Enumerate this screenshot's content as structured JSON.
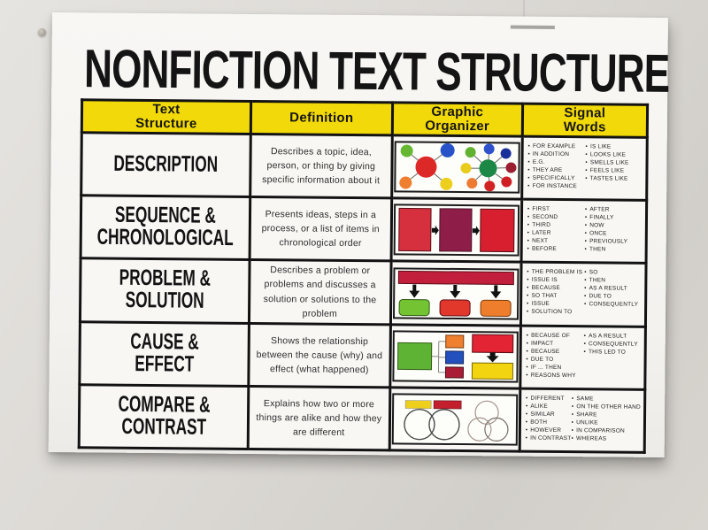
{
  "poster": {
    "title": "NONFICTION TEXT STRUCTURE"
  },
  "colors": {
    "header_yellow": "#f2d90a",
    "poster_white": "#f6f5f2",
    "wall_gray": "#dbd8d4",
    "border_black": "#121212",
    "red": "#d62f3e",
    "maroon": "#8e1e47",
    "crimson": "#c21f3d",
    "green": "#5eb335",
    "orange": "#ee8030",
    "blue": "#2450be",
    "yellow": "#f2d411"
  },
  "table": {
    "headers": [
      "Text\nStructure",
      "Definition",
      "Graphic\nOrganizer",
      "Signal\nWords"
    ],
    "rows": [
      {
        "structure": "DESCRIPTION",
        "definition": "Describes a topic, idea, person, or thing by giving specific information about it",
        "organizer": "two bubble webs",
        "signal_words_col1": [
          "FOR EXAMPLE",
          "IN ADDITION",
          "E.G.",
          "THEY ARE",
          "SPECIFICALLY",
          "FOR INSTANCE"
        ],
        "signal_words_col2": [
          "IS LIKE",
          "LOOKS LIKE",
          "SMELLS LIKE",
          "FEELS LIKE",
          "TASTES LIKE"
        ]
      },
      {
        "structure": "SEQUENCE &\nCHRONOLOGICAL",
        "definition": "Presents ideas, steps in a process, or a list of items in chronological order",
        "organizer": "three boxes with arrows flow",
        "signal_words_col1": [
          "FIRST",
          "SECOND",
          "THIRD",
          "LATER",
          "NEXT",
          "BEFORE"
        ],
        "signal_words_col2": [
          "AFTER",
          "FINALLY",
          "NOW",
          "ONCE",
          "PREVIOUSLY",
          "THEN"
        ]
      },
      {
        "structure": "PROBLEM &\nSOLUTION",
        "definition": "Describes a problem or problems and discusses a solution or solutions to the problem",
        "organizer": "problem bar with arrows down to three solution boxes",
        "signal_words_col1": [
          "THE PROBLEM IS",
          "ISSUE IS",
          "BECAUSE",
          "SO THAT",
          "ISSUE",
          "SOLUTION TO"
        ],
        "signal_words_col2": [
          "SO",
          "THEN",
          "AS A RESULT",
          "DUE TO",
          "CONSEQUENTLY"
        ]
      },
      {
        "structure": "CAUSE &\nEFFECT",
        "definition": "Shows the relationship between the cause (why) and effect (what happened)",
        "organizer": "cause box branching to effects; cause with arrow to effect",
        "signal_words_col1": [
          "BECAUSE OF",
          "IMPACT",
          "BECAUSE",
          "DUE TO",
          "IF ... THEN",
          "REASONS WHY"
        ],
        "signal_words_col2": [
          "AS A RESULT",
          "CONSEQUENTLY",
          "THIS LED TO"
        ]
      },
      {
        "structure": "COMPARE &\nCONTRAST",
        "definition": "Explains how two or more things are alike and how they are different",
        "organizer": "two-circle and three-circle venn diagrams",
        "signal_words_col1": [
          "DIFFERENT",
          "ALIKE",
          "SIMILAR",
          "BOTH",
          "HOWEVER",
          "IN CONTRAST"
        ],
        "signal_words_col2": [
          "SAME",
          "ON THE OTHER HAND",
          "SHARE",
          "UNLIKE",
          "IN COMPARISON",
          "WHEREAS"
        ]
      }
    ]
  }
}
